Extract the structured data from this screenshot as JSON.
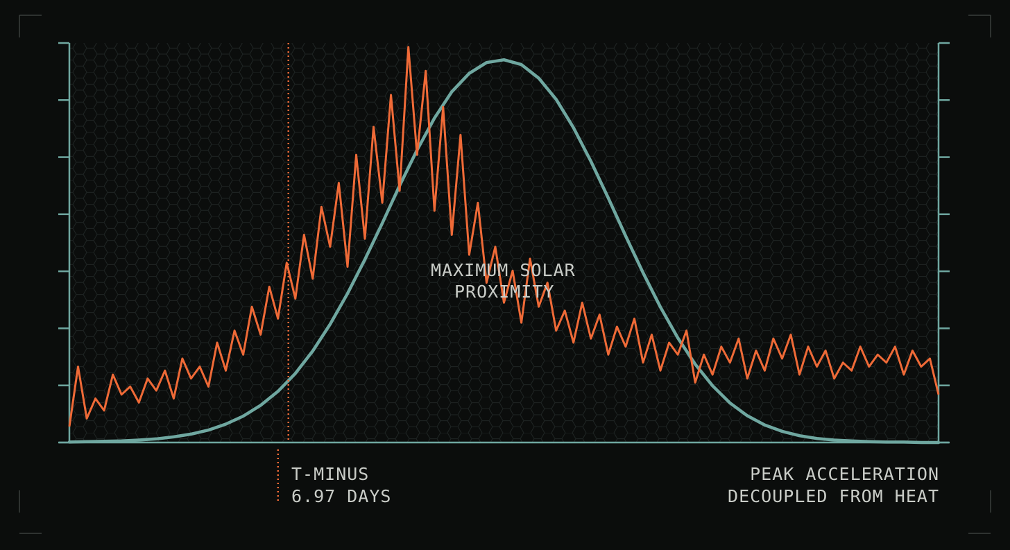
{
  "chart_data": {
    "type": "line",
    "title": "",
    "xlabel": "",
    "ylabel": "",
    "xlim": [
      0,
      100
    ],
    "ylim": [
      0,
      100
    ],
    "grid": "hexagonal",
    "colors": {
      "background": "#0b0d0c",
      "frame": "#6fa7a0",
      "spike_series": "#ef6a37",
      "curve_series": "#6fa7a0",
      "marker": "#ef6a37",
      "text": "#c9ccc7",
      "hex_grid": "#1f2524",
      "corner_marks": "#3a3f3d"
    },
    "series": [
      {
        "color": "#ef6a37",
        "x": [
          0,
          1,
          2,
          3,
          4,
          5,
          6,
          7,
          8,
          9,
          10,
          11,
          12,
          13,
          14,
          15,
          16,
          17,
          18,
          19,
          20,
          21,
          22,
          23,
          24,
          25,
          26,
          27,
          28,
          29,
          30,
          31,
          32,
          33,
          34,
          35,
          36,
          37,
          38,
          39,
          40,
          41,
          42,
          43,
          44,
          45,
          46,
          47,
          48,
          49,
          50,
          51,
          52,
          53,
          54,
          55,
          56,
          57,
          58,
          59,
          60,
          61,
          62,
          63,
          64,
          65,
          66,
          67,
          68,
          69,
          70,
          71,
          72,
          73,
          74,
          75,
          76,
          77,
          78,
          79,
          80,
          81,
          82,
          83,
          84,
          85,
          86,
          87,
          88,
          89,
          90,
          91,
          92,
          93,
          94,
          95,
          96,
          97,
          98,
          99,
          100
        ],
        "values": [
          4,
          19,
          6,
          11,
          8,
          17,
          12,
          14,
          10,
          16,
          13,
          18,
          11,
          21,
          16,
          19,
          14,
          25,
          18,
          28,
          22,
          34,
          27,
          39,
          31,
          45,
          36,
          52,
          41,
          59,
          49,
          65,
          44,
          72,
          51,
          79,
          60,
          87,
          63,
          99,
          72,
          93,
          58,
          84,
          52,
          77,
          47,
          60,
          40,
          49,
          35,
          43,
          30,
          46,
          34,
          40,
          28,
          33,
          25,
          35,
          26,
          32,
          22,
          29,
          24,
          31,
          20,
          27,
          18,
          25,
          22,
          28,
          15,
          22,
          17,
          24,
          20,
          26,
          16,
          23,
          18,
          26,
          21,
          27,
          17,
          24,
          19,
          23,
          16,
          20,
          18,
          24,
          19,
          22,
          20,
          24,
          17,
          23,
          19,
          21,
          12
        ]
      },
      {
        "color": "#6fa7a0",
        "x": [
          0,
          2,
          4,
          6,
          8,
          10,
          12,
          14,
          16,
          18,
          20,
          22,
          24,
          26,
          28,
          30,
          32,
          34,
          36,
          38,
          40,
          42,
          44,
          46,
          48,
          50,
          52,
          54,
          56,
          58,
          60,
          62,
          64,
          66,
          68,
          70,
          72,
          74,
          76,
          78,
          80,
          82,
          84,
          86,
          88,
          90,
          92,
          94,
          96,
          98,
          100
        ],
        "values": [
          0.1,
          0.2,
          0.3,
          0.4,
          0.6,
          0.9,
          1.4,
          2.1,
          3.1,
          4.6,
          6.6,
          9.3,
          12.8,
          17.3,
          22.9,
          29.6,
          37.3,
          45.8,
          54.9,
          64.3,
          73.2,
          81.2,
          87.8,
          92.4,
          95.1,
          95.8,
          94.6,
          91.2,
          85.9,
          78.8,
          70.4,
          61.2,
          51.7,
          42.5,
          33.9,
          26.2,
          19.6,
          14.2,
          9.9,
          6.7,
          4.4,
          2.8,
          1.7,
          1.0,
          0.6,
          0.4,
          0.2,
          0.1,
          0.1,
          0.0,
          0.0
        ]
      }
    ],
    "marker_x": 25.2,
    "annotations": {
      "center_line1": "MAXIMUM SOLAR",
      "center_line2": "PROXIMITY",
      "marker_line1": "T-MINUS",
      "marker_line2": "6.97 DAYS",
      "right_line1": "PEAK ACCELERATION",
      "right_line2": "DECOUPLED FROM HEAT"
    }
  }
}
